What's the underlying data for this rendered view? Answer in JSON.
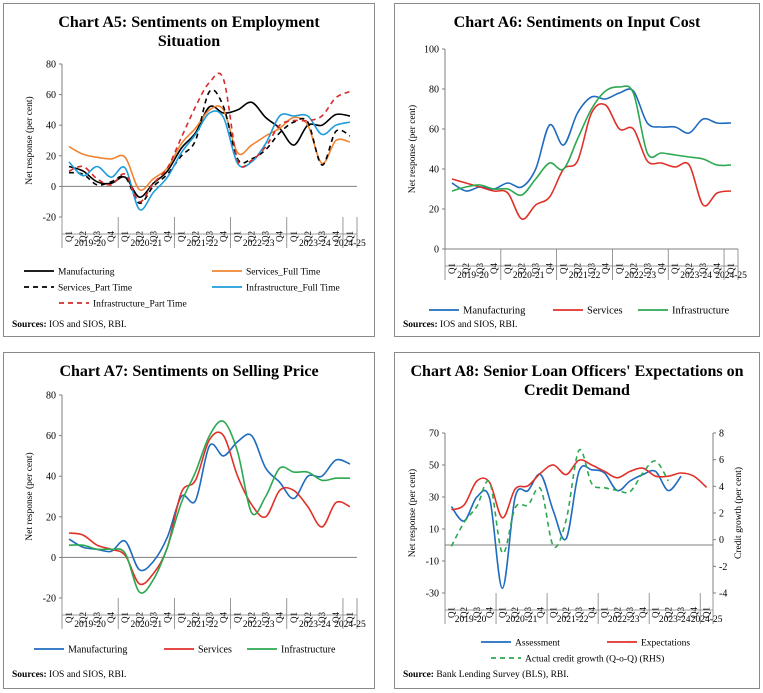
{
  "charts": [
    {
      "id": "A5",
      "title": "Chart A5: Sentiments on Employment Situation",
      "title_lines": [
        "Chart A5: Sentiments on Employment",
        "Situation"
      ],
      "source_label": "Sources:",
      "source_text": " IOS and SIOS, RBI."
    },
    {
      "id": "A6",
      "title": "Chart A6: Sentiments on Input Cost",
      "title_lines": [
        "Chart A6: Sentiments on Input Cost"
      ],
      "source_label": "Sources:",
      "source_text": " IOS and SIOS, RBI."
    },
    {
      "id": "A7",
      "title": "Chart A7: Sentiments on Selling Price",
      "title_lines": [
        "Chart A7: Sentiments on Selling Price"
      ],
      "source_label": "Sources:",
      "source_text": " IOS and SIOS, RBI."
    },
    {
      "id": "A8",
      "title": "Chart A8: Senior Loan Officers' Expectations on Credit Demand",
      "title_lines": [
        "Chart A8: Senior Loan Officers' Expectations on",
        "Credit Demand"
      ],
      "source_label": "Source:",
      "source_text": " Bank Lending Survey (BLS), RBI."
    }
  ],
  "chart_data": [
    {
      "type": "line",
      "title": "Chart A5: Sentiments on Employment Situation",
      "ylabel": "Net response (per cent)",
      "ylim": [
        -20,
        80
      ],
      "yticks": [
        -20,
        0,
        20,
        40,
        60,
        80
      ],
      "quarters": [
        "Q1",
        "Q2",
        "Q3",
        "Q4",
        "Q1",
        "Q2",
        "Q3",
        "Q4",
        "Q1",
        "Q2",
        "Q3",
        "Q4",
        "Q1",
        "Q2",
        "Q3",
        "Q4",
        "Q1",
        "Q2",
        "Q3",
        "Q4",
        "Q1"
      ],
      "years": [
        "2019-20",
        "2020-21",
        "2021-22",
        "2022-23",
        "2023-24",
        "2024-25"
      ],
      "series": [
        {
          "name": "Manufacturing",
          "color": "#000000",
          "dash": "",
          "values": [
            13,
            10,
            3,
            2,
            6,
            -7,
            2,
            10,
            25,
            35,
            52,
            48,
            50,
            55,
            45,
            38,
            27,
            40,
            40,
            47,
            46
          ]
        },
        {
          "name": "Services_Full Time",
          "color": "#f08432",
          "dash": "",
          "values": [
            26,
            21,
            19,
            18,
            19,
            -2,
            5,
            12,
            28,
            38,
            50,
            50,
            22,
            27,
            33,
            38,
            45,
            40,
            15,
            30,
            29
          ]
        },
        {
          "name": "Services_Part Time",
          "color": "#000000",
          "dash": "5,4",
          "values": [
            9,
            8,
            1,
            3,
            6,
            -11,
            0,
            8,
            20,
            30,
            62,
            52,
            18,
            18,
            24,
            35,
            42,
            42,
            14,
            36,
            33
          ]
        },
        {
          "name": "Infrastructure_Full Time",
          "color": "#1f9ddb",
          "dash": "",
          "values": [
            16,
            7,
            13,
            6,
            12,
            -15,
            -4,
            6,
            22,
            34,
            48,
            45,
            15,
            16,
            28,
            46,
            46,
            46,
            34,
            40,
            42
          ]
        },
        {
          "name": "Infrastructure_Part Time",
          "color": "#d62a2a",
          "dash": "5,4",
          "values": [
            10,
            13,
            5,
            1,
            8,
            -10,
            2,
            12,
            32,
            52,
            68,
            70,
            17,
            17,
            26,
            40,
            43,
            43,
            46,
            58,
            62
          ]
        }
      ]
    },
    {
      "type": "line",
      "title": "Chart A6: Sentiments on Input Cost",
      "ylabel": "Net response (per cent)",
      "ylim": [
        0,
        100
      ],
      "yticks": [
        0,
        20,
        40,
        60,
        80,
        100
      ],
      "quarters": [
        "Q1",
        "Q2",
        "Q3",
        "Q4",
        "Q1",
        "Q2",
        "Q3",
        "Q4",
        "Q1",
        "Q2",
        "Q3",
        "Q4",
        "Q1",
        "Q2",
        "Q3",
        "Q4",
        "Q1",
        "Q2",
        "Q3",
        "Q4",
        "Q1"
      ],
      "years": [
        "2019-20",
        "2020-21",
        "2021-22",
        "2022-23",
        "2023-24",
        "2024-25"
      ],
      "series": [
        {
          "name": "Manufacturing",
          "color": "#1f6bbf",
          "dash": "",
          "values": [
            33,
            29,
            31,
            30,
            33,
            31,
            40,
            62,
            52,
            68,
            76,
            75,
            78,
            79,
            63,
            61,
            61,
            58,
            65,
            63,
            63
          ]
        },
        {
          "name": "Services",
          "color": "#e03128",
          "dash": "",
          "values": [
            35,
            33,
            31,
            29,
            28,
            15,
            22,
            26,
            40,
            44,
            68,
            72,
            60,
            60,
            44,
            43,
            41,
            42,
            22,
            28,
            29
          ]
        },
        {
          "name": "Infrastructure",
          "color": "#2ca850",
          "dash": "",
          "values": [
            29,
            31,
            32,
            30,
            30,
            27,
            35,
            43,
            40,
            55,
            70,
            79,
            81,
            78,
            48,
            48,
            47,
            46,
            45,
            42,
            42
          ]
        }
      ]
    },
    {
      "type": "line",
      "title": "Chart A7: Sentiments on Selling Price",
      "ylabel": "Net response (per cent)",
      "ylim": [
        -20,
        80
      ],
      "yticks": [
        -20,
        0,
        20,
        40,
        60,
        80
      ],
      "quarters": [
        "Q1",
        "Q2",
        "Q3",
        "Q4",
        "Q1",
        "Q2",
        "Q3",
        "Q4",
        "Q1",
        "Q2",
        "Q3",
        "Q4",
        "Q1",
        "Q2",
        "Q3",
        "Q4",
        "Q1",
        "Q2",
        "Q3",
        "Q4",
        "Q1"
      ],
      "years": [
        "2019-20",
        "2020-21",
        "2021-22",
        "2022-23",
        "2023-24",
        "2024-25"
      ],
      "series": [
        {
          "name": "Manufacturing",
          "color": "#1f6bbf",
          "dash": "",
          "values": [
            9,
            5,
            4,
            3,
            8,
            -6,
            -2,
            10,
            30,
            28,
            55,
            50,
            57,
            60,
            44,
            37,
            29,
            40,
            40,
            48,
            46
          ]
        },
        {
          "name": "Services",
          "color": "#e03128",
          "dash": "",
          "values": [
            12,
            11,
            6,
            4,
            1,
            -13,
            -8,
            5,
            32,
            38,
            58,
            60,
            40,
            26,
            20,
            33,
            33,
            25,
            15,
            27,
            25
          ]
        },
        {
          "name": "Infrastructure",
          "color": "#2ca850",
          "dash": "",
          "values": [
            6,
            6,
            4,
            4,
            2,
            -17,
            -11,
            5,
            27,
            42,
            60,
            67,
            52,
            22,
            30,
            44,
            42,
            42,
            38,
            39,
            39
          ]
        }
      ]
    },
    {
      "type": "line",
      "title": "Chart A8: Senior Loan Officers' Expectations on Credit Demand",
      "ylabel": "Net  response (per cent)",
      "ylabel_rhs": "Credit growth (per cent)",
      "ylim": [
        -30,
        70
      ],
      "yticks": [
        -30,
        -10,
        10,
        30,
        50,
        70
      ],
      "ylim_rhs": [
        -4,
        8
      ],
      "yticks_rhs": [
        -4,
        -2,
        0,
        2,
        4,
        6,
        8
      ],
      "quarters": [
        "Q1",
        "Q2",
        "Q3",
        "Q4",
        "Q1",
        "Q2",
        "Q3",
        "Q4",
        "Q1",
        "Q2",
        "Q3",
        "Q4",
        "Q1",
        "Q2",
        "Q3",
        "Q4",
        "Q1",
        "Q2",
        "Q3",
        "Q4",
        "Q1"
      ],
      "years": [
        "2019-20",
        "2020-21",
        "2021-22",
        "2022-23",
        "2023-24",
        "2024-25"
      ],
      "series": [
        {
          "name": "Assessment",
          "color": "#1f6bbf",
          "dash": "",
          "axis": "left",
          "values": [
            24,
            15,
            30,
            29,
            -27,
            30,
            34,
            44,
            21,
            4,
            46,
            47,
            45,
            34,
            40,
            44,
            46,
            34,
            43,
            null,
            null
          ]
        },
        {
          "name": "Expectations",
          "color": "#e03128",
          "dash": "",
          "axis": "left",
          "values": [
            22,
            25,
            40,
            39,
            17,
            35,
            37,
            45,
            50,
            44,
            53,
            50,
            46,
            42,
            46,
            48,
            43,
            43,
            45,
            43,
            36
          ]
        },
        {
          "name": "Actual credit growth (Q-o-Q) (RHS)",
          "color": "#2ca850",
          "dash": "5,4",
          "axis": "right",
          "values": [
            -0.5,
            1.3,
            2.5,
            4.3,
            -1.0,
            2.4,
            2.6,
            3.8,
            -0.5,
            1.5,
            6.7,
            4.2,
            3.9,
            3.7,
            3.6,
            5.0,
            5.9,
            4.4,
            null,
            null,
            null
          ]
        }
      ]
    }
  ]
}
